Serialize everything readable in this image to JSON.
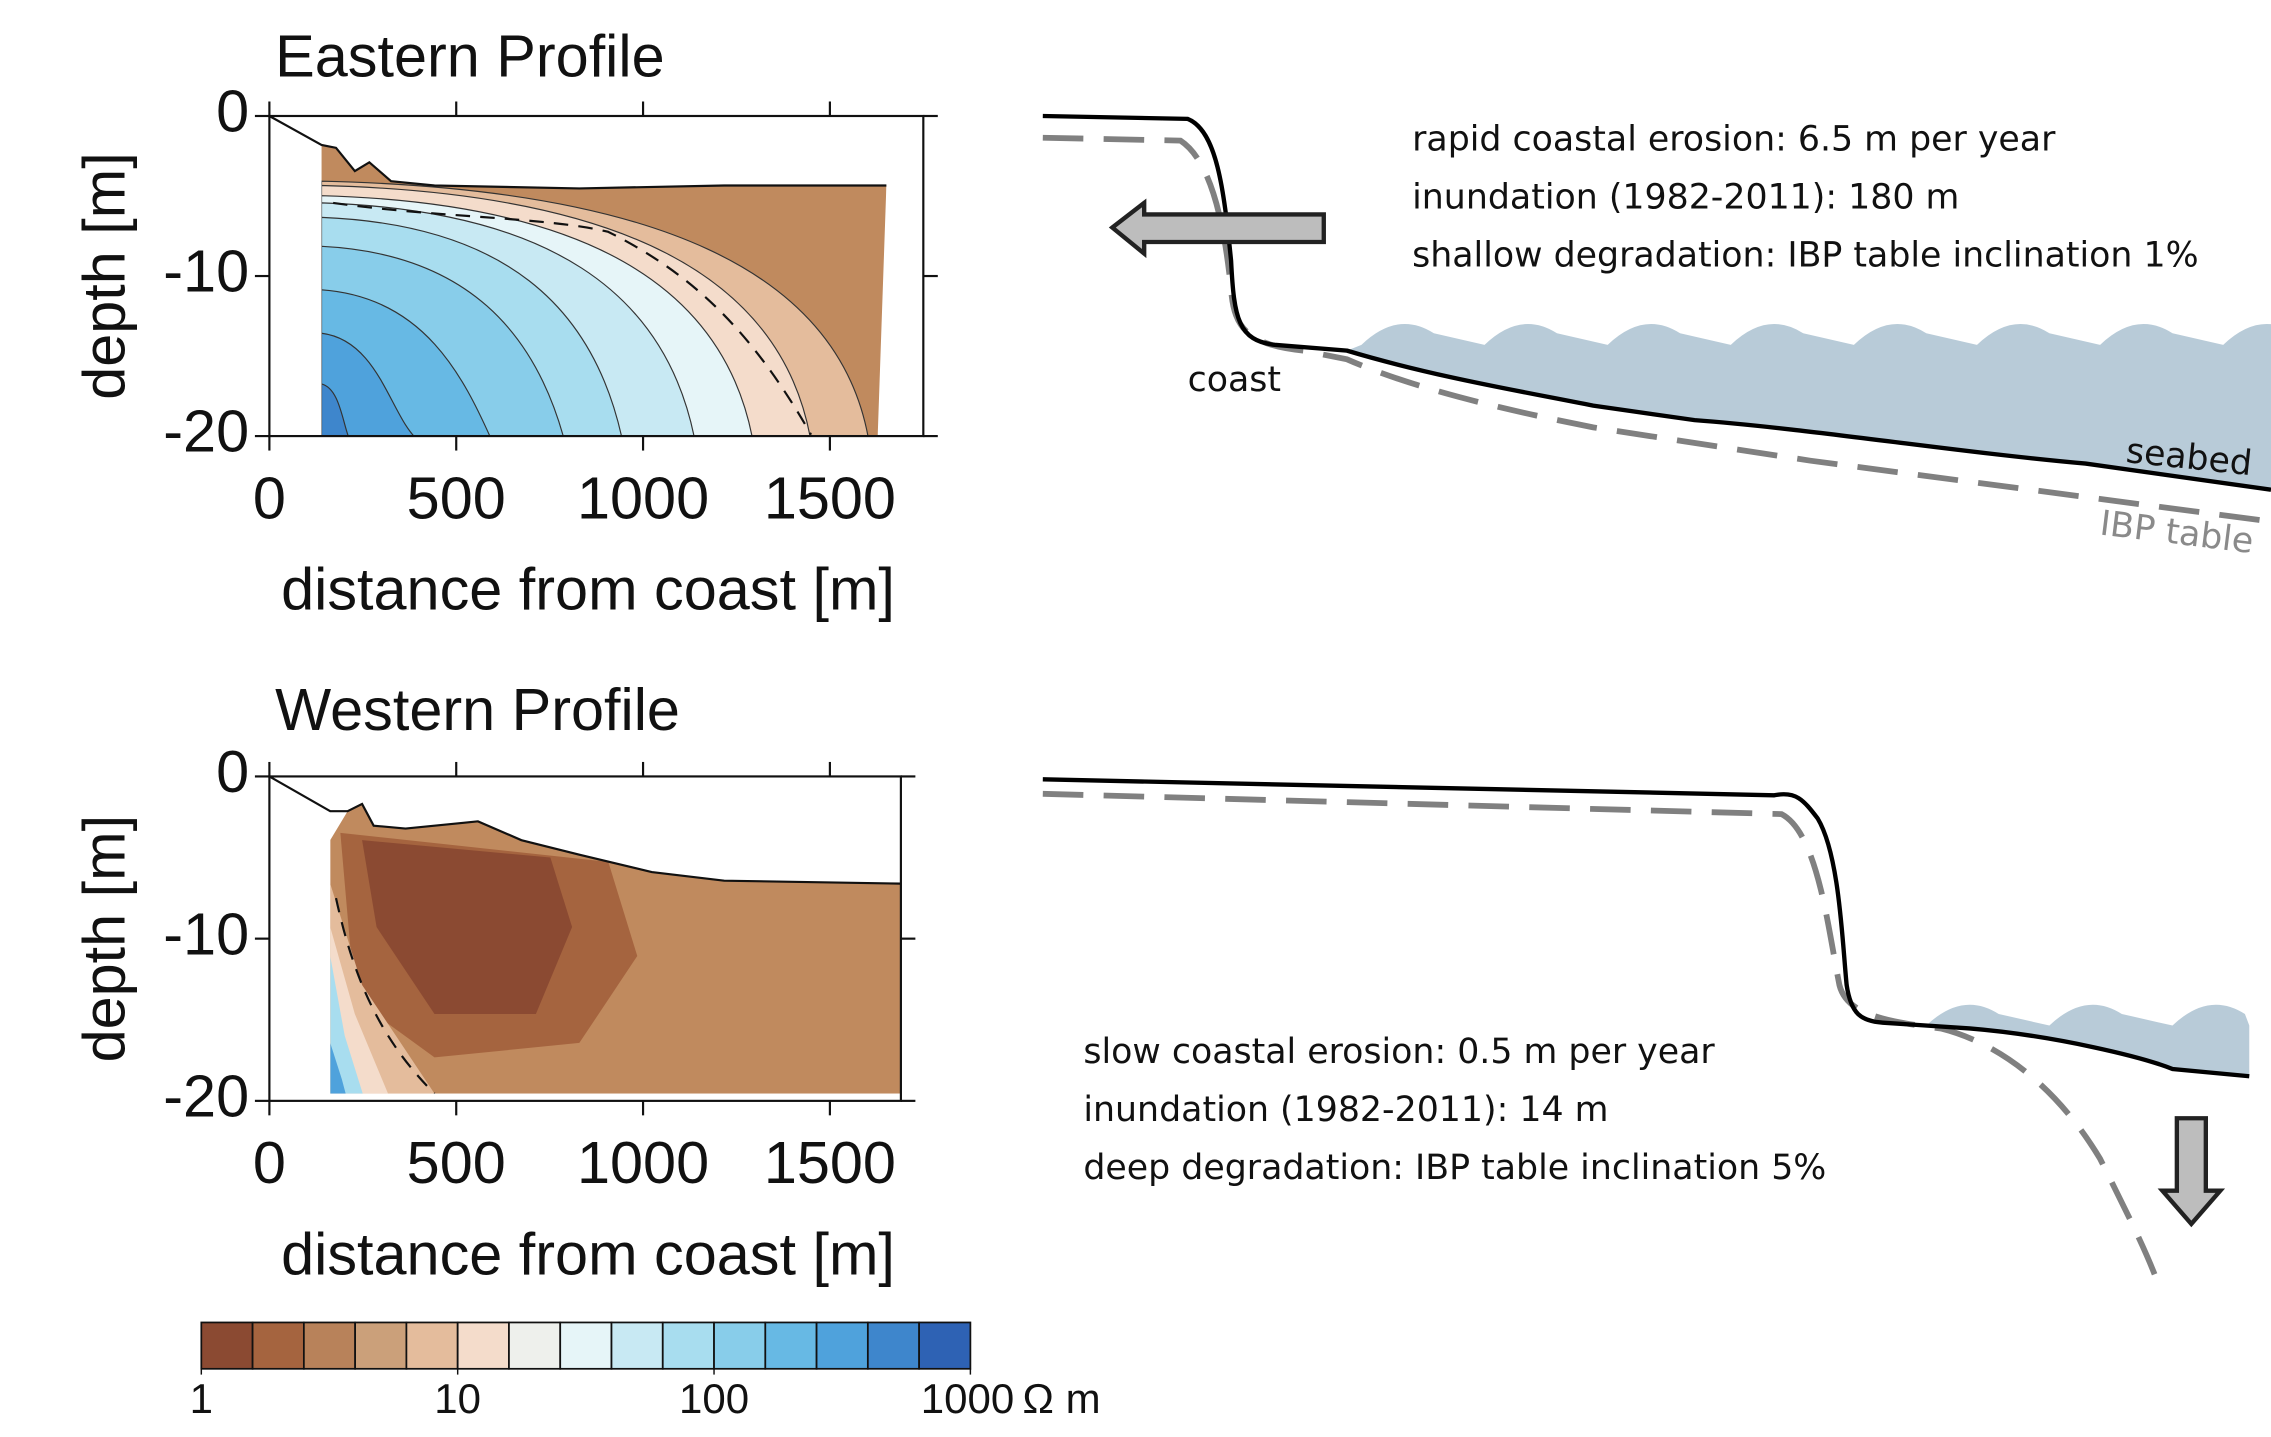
{
  "chart_data": [
    {
      "type": "contour",
      "title": "Eastern Profile",
      "xlabel": "distance from coast [m]",
      "ylabel": "depth [m]",
      "xlim": [
        0,
        1750
      ],
      "ylim": [
        -20,
        0
      ],
      "xticks": [
        0,
        500,
        1000,
        1500
      ],
      "yticks": [
        0,
        -10,
        -20
      ]
    },
    {
      "type": "contour",
      "title": "Western Profile",
      "xlabel": "distance from coast [m]",
      "ylabel": "depth [m]",
      "xlim": [
        0,
        1690
      ],
      "ylim": [
        -20,
        0
      ],
      "xticks": [
        0,
        500,
        1000,
        1500
      ],
      "yticks": [
        0,
        -10,
        -20
      ]
    }
  ],
  "colorbar": {
    "colors": [
      "#8b4a32",
      "#a5643f",
      "#b8825a",
      "#cba07a",
      "#e4bc9c",
      "#f4dccb",
      "#eef0ec",
      "#e6f5f8",
      "#c8e9f3",
      "#a8ddef",
      "#88cdea",
      "#67b9e4",
      "#4fa2dc",
      "#3e86cc",
      "#2e62b4"
    ],
    "lim": [
      1,
      1000
    ],
    "ticks": [
      1,
      10,
      100,
      1000
    ],
    "unit": "Ω m",
    "log": true
  },
  "diagrams": [
    {
      "lines": [
        "rapid coastal erosion: 6.5 m per year",
        "inundation (1982-2011): 180 m",
        "shallow degradation: IBP table inclination 1%"
      ],
      "labels": [
        "coast",
        "seabed",
        "IBP table"
      ]
    },
    {
      "lines": [
        "slow coastal erosion: 0.5 m per year",
        "inundation (1982-2011): 14 m",
        "deep degradation: IBP table inclination 5%"
      ]
    }
  ]
}
